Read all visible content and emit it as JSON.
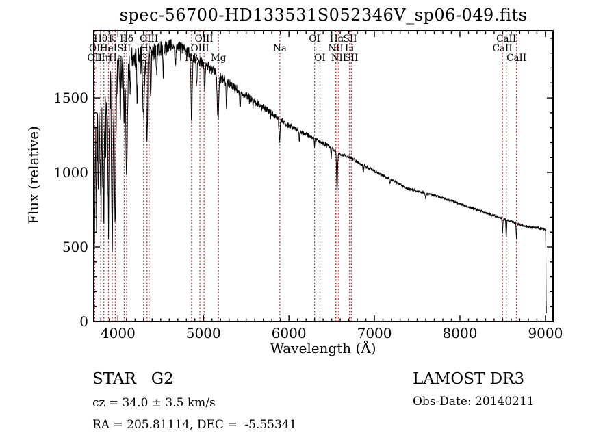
{
  "header": {
    "title": "spec-56700-HD133531S052346V_sp06-049.fits"
  },
  "footer": {
    "class_label": "STAR   G2",
    "cz": "cz = 34.0 ± 3.5 km/s",
    "radec": "RA = 205.81114, DEC =  -5.55341",
    "survey": "LAMOST DR3",
    "obs_date": "Obs-Date: 20140211"
  },
  "colors": {
    "background": "#ffffff",
    "spectrum": "#000000",
    "frame": "#000000",
    "line_marker": "#993333",
    "text": "#000000"
  },
  "chart_data": {
    "type": "line",
    "title": "spec-56700-HD133531S052346V_sp06-049.fits",
    "xlabel": "Wavelength (Å)",
    "ylabel": "Flux (relative)",
    "xlim": [
      3717,
      9089
    ],
    "ylim": [
      0,
      1950
    ],
    "xticks": [
      4000,
      5000,
      6000,
      7000,
      8000,
      9000
    ],
    "yticks": [
      0,
      500,
      1000,
      1500
    ],
    "x_minor_step": 100,
    "y_minor_step": 100,
    "grid": false,
    "legend": null,
    "spectral_line_markers": [
      {
        "wavelength": 3727,
        "label": "OI",
        "row": 2
      },
      {
        "wavelength": 3727,
        "label": "OII",
        "row": 3
      },
      {
        "wavelength": 3798,
        "label": "Hθ",
        "row": 1
      },
      {
        "wavelength": 3835,
        "label": "Hη",
        "row": 3
      },
      {
        "wavelength": 3889,
        "label": "HeI",
        "row": 2
      },
      {
        "wavelength": 3933,
        "label": "K",
        "row": 1
      },
      {
        "wavelength": 3968,
        "label": "Hε",
        "row": 3
      },
      {
        "wavelength": 4072,
        "label": "SII",
        "row": 2
      },
      {
        "wavelength": 4102,
        "label": "Hδ",
        "row": 1
      },
      {
        "wavelength": 4300,
        "label": "G",
        "row": 3
      },
      {
        "wavelength": 4340,
        "label": "Hγ",
        "row": 2
      },
      {
        "wavelength": 4363,
        "label": "OIII",
        "row": 1
      },
      {
        "wavelength": 4861,
        "label": "Hβ",
        "row": 3
      },
      {
        "wavelength": 4959,
        "label": "OIII",
        "row": 2
      },
      {
        "wavelength": 5007,
        "label": "OIII",
        "row": 1
      },
      {
        "wavelength": 5175,
        "label": "Mg",
        "row": 3
      },
      {
        "wavelength": 5894,
        "label": "Na",
        "row": 2
      },
      {
        "wavelength": 6300,
        "label": "OI",
        "row": 1
      },
      {
        "wavelength": 6363,
        "label": "OI",
        "row": 3
      },
      {
        "wavelength": 6548,
        "label": "NII",
        "row": 2
      },
      {
        "wavelength": 6563,
        "label": "Hα",
        "row": 1
      },
      {
        "wavelength": 6583,
        "label": "NII",
        "row": 3
      },
      {
        "wavelength": 6708,
        "label": "Li",
        "row": 2
      },
      {
        "wavelength": 6716,
        "label": "SII",
        "row": 1
      },
      {
        "wavelength": 6731,
        "label": "SII",
        "row": 3
      },
      {
        "wavelength": 8498,
        "label": "CaII",
        "row": 2
      },
      {
        "wavelength": 8542,
        "label": "CaII",
        "row": 1
      },
      {
        "wavelength": 8662,
        "label": "CaII",
        "row": 3
      }
    ],
    "spectrum": {
      "sample_step": 3,
      "seed": 42,
      "continuum": [
        [
          3716,
          10
        ],
        [
          3722,
          1000
        ],
        [
          3740,
          1280
        ],
        [
          3780,
          1370
        ],
        [
          3830,
          1460
        ],
        [
          3880,
          1560
        ],
        [
          3930,
          1620
        ],
        [
          3980,
          1660
        ],
        [
          4040,
          1700
        ],
        [
          4110,
          1730
        ],
        [
          4200,
          1760
        ],
        [
          4320,
          1790
        ],
        [
          4420,
          1815
        ],
        [
          4520,
          1835
        ],
        [
          4620,
          1850
        ],
        [
          4720,
          1840
        ],
        [
          4820,
          1810
        ],
        [
          4900,
          1770
        ],
        [
          5000,
          1725
        ],
        [
          5100,
          1690
        ],
        [
          5200,
          1645
        ],
        [
          5300,
          1595
        ],
        [
          5400,
          1555
        ],
        [
          5500,
          1515
        ],
        [
          5600,
          1475
        ],
        [
          5700,
          1435
        ],
        [
          5800,
          1395
        ],
        [
          5900,
          1355
        ],
        [
          6000,
          1315
        ],
        [
          6100,
          1285
        ],
        [
          6200,
          1255
        ],
        [
          6300,
          1225
        ],
        [
          6400,
          1195
        ],
        [
          6500,
          1165
        ],
        [
          6600,
          1125
        ],
        [
          6700,
          1105
        ],
        [
          6800,
          1070
        ],
        [
          6900,
          1040
        ],
        [
          7000,
          1010
        ],
        [
          7100,
          980
        ],
        [
          7200,
          950
        ],
        [
          7300,
          920
        ],
        [
          7400,
          890
        ],
        [
          7500,
          875
        ],
        [
          7600,
          860
        ],
        [
          7700,
          845
        ],
        [
          7800,
          830
        ],
        [
          7900,
          810
        ],
        [
          8000,
          790
        ],
        [
          8100,
          770
        ],
        [
          8200,
          750
        ],
        [
          8300,
          730
        ],
        [
          8400,
          710
        ],
        [
          8500,
          692
        ],
        [
          8600,
          672
        ],
        [
          8700,
          650
        ],
        [
          8800,
          636
        ],
        [
          8900,
          628
        ],
        [
          8990,
          620
        ],
        [
          9002,
          612
        ],
        [
          9005,
          480
        ],
        [
          9008,
          150
        ],
        [
          9011,
          60
        ],
        [
          9014,
          58
        ]
      ],
      "absorption_lines": [
        [
          3727,
          480,
          5
        ],
        [
          3750,
          550,
          4
        ],
        [
          3770,
          480,
          4
        ],
        [
          3798,
          720,
          6
        ],
        [
          3819,
          420,
          4
        ],
        [
          3835,
          760,
          6
        ],
        [
          3860,
          380,
          4
        ],
        [
          3889,
          880,
          7
        ],
        [
          3933,
          1120,
          8
        ],
        [
          3968,
          1020,
          8
        ],
        [
          4026,
          280,
          5
        ],
        [
          4072,
          330,
          5
        ],
        [
          4102,
          780,
          8
        ],
        [
          4144,
          240,
          5
        ],
        [
          4226,
          280,
          5
        ],
        [
          4300,
          430,
          9
        ],
        [
          4340,
          580,
          7
        ],
        [
          4383,
          280,
          5
        ],
        [
          4455,
          180,
          5
        ],
        [
          4531,
          170,
          5
        ],
        [
          4668,
          150,
          5
        ],
        [
          4861,
          470,
          7
        ],
        [
          4920,
          180,
          5
        ],
        [
          5015,
          140,
          5
        ],
        [
          5170,
          300,
          9
        ],
        [
          5270,
          160,
          6
        ],
        [
          5430,
          120,
          5
        ],
        [
          5890,
          150,
          6
        ],
        [
          6122,
          60,
          4
        ],
        [
          6300,
          55,
          3
        ],
        [
          6495,
          70,
          4
        ],
        [
          6563,
          265,
          6
        ],
        [
          6870,
          45,
          4
        ],
        [
          7180,
          35,
          4
        ],
        [
          7600,
          40,
          5
        ],
        [
          8498,
          95,
          4
        ],
        [
          8542,
          125,
          4
        ],
        [
          8662,
          105,
          4
        ]
      ],
      "noise_profile": [
        [
          3717,
          185
        ],
        [
          3800,
          170
        ],
        [
          3900,
          150
        ],
        [
          4000,
          125
        ],
        [
          4150,
          95
        ],
        [
          4300,
          75
        ],
        [
          4500,
          52
        ],
        [
          4700,
          42
        ],
        [
          4900,
          35
        ],
        [
          5100,
          38
        ],
        [
          5400,
          30
        ],
        [
          5700,
          24
        ],
        [
          6000,
          18
        ],
        [
          6400,
          14
        ],
        [
          6800,
          11
        ],
        [
          7200,
          9
        ],
        [
          7800,
          8
        ],
        [
          8400,
          8
        ],
        [
          8960,
          8
        ],
        [
          9002,
          5
        ],
        [
          9014,
          3
        ]
      ]
    }
  }
}
